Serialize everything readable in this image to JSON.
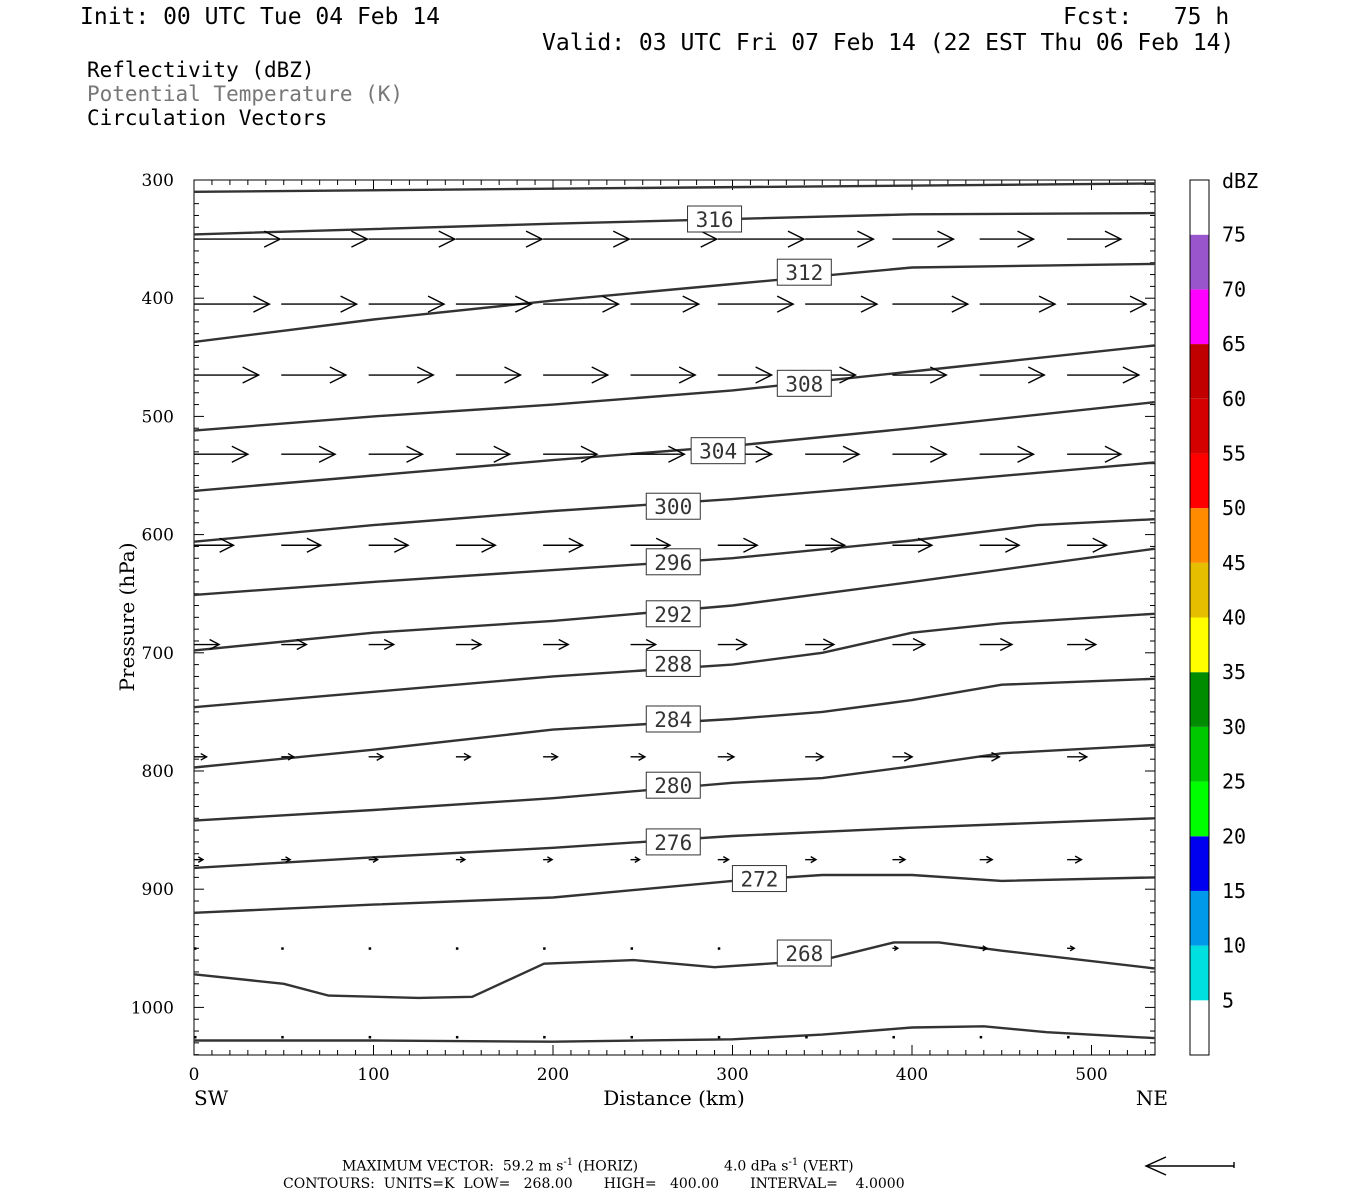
{
  "header": {
    "init": "Init: 00 UTC Tue 04 Feb 14",
    "fcst": "Fcst:   75 h",
    "valid": "Valid: 03 UTC Fri 07 Feb 14 (22 EST Thu 06 Feb 14)"
  },
  "legend": {
    "fields": [
      "Reflectivity (dBZ)",
      "Potential Temperature (K)",
      "Circulation Vectors"
    ],
    "colors": [
      "#000000",
      "#777777",
      "#000000"
    ]
  },
  "footer": {
    "max_vector": "MAXIMUM VECTOR:  59.2 m s",
    "max_vector_exp": "-1",
    "horiz": "(HORIZ)",
    "vert_val": "4.0 dPa s",
    "vert_exp": "-1",
    "vert": "(VERT)",
    "contours": "CONTOURS:  UNITS=K  LOW=   268.00       HIGH=   400.00       INTERVAL=    4.0000"
  },
  "chart_data": {
    "type": "cross-section",
    "xlabel": "Distance (km)",
    "ylabel": "Pressure (hPa)",
    "xlim": [
      0,
      535
    ],
    "ylim": [
      1040,
      300
    ],
    "x_ticks": [
      0,
      100,
      200,
      300,
      400,
      500
    ],
    "y_ticks": [
      300,
      400,
      500,
      600,
      700,
      800,
      900,
      1000
    ],
    "left_endpoint": "SW",
    "right_endpoint": "NE",
    "contours": [
      {
        "level": "unlabeled",
        "x": [
          0,
          535
        ],
        "p": [
          310,
          303
        ]
      },
      {
        "level": "316",
        "x": [
          0,
          200,
          400,
          535
        ],
        "p": [
          346,
          337,
          329,
          328
        ],
        "label_at": [
          290,
          333
        ]
      },
      {
        "level": "312",
        "x": [
          0,
          100,
          200,
          300,
          400,
          535
        ],
        "p": [
          437,
          418,
          402,
          388,
          374,
          371
        ],
        "label_at": [
          340,
          378
        ]
      },
      {
        "level": "308",
        "x": [
          0,
          100,
          200,
          300,
          400,
          535
        ],
        "p": [
          512,
          500,
          490,
          478,
          462,
          440
        ],
        "label_at": [
          340,
          472
        ]
      },
      {
        "level": "304",
        "x": [
          0,
          100,
          200,
          300,
          400,
          535
        ],
        "p": [
          563,
          550,
          537,
          525,
          510,
          488
        ],
        "label_at": [
          292,
          529
        ]
      },
      {
        "level": "300",
        "x": [
          0,
          100,
          200,
          300,
          400,
          535
        ],
        "p": [
          606,
          592,
          580,
          570,
          557,
          539
        ],
        "label_at": [
          267,
          576
        ]
      },
      {
        "level": "296",
        "x": [
          0,
          100,
          200,
          300,
          400,
          470,
          535
        ],
        "p": [
          651,
          640,
          630,
          620,
          605,
          592,
          587
        ],
        "label_at": [
          267,
          623
        ]
      },
      {
        "level": "292",
        "x": [
          0,
          100,
          200,
          300,
          400,
          535
        ],
        "p": [
          698,
          683,
          673,
          660,
          640,
          612
        ],
        "label_at": [
          267,
          667
        ]
      },
      {
        "level": "288",
        "x": [
          0,
          100,
          200,
          300,
          350,
          400,
          450,
          535
        ],
        "p": [
          746,
          733,
          720,
          710,
          700,
          683,
          675,
          667
        ],
        "label_at": [
          267,
          709
        ]
      },
      {
        "level": "284",
        "x": [
          0,
          100,
          200,
          300,
          350,
          400,
          450,
          535
        ],
        "p": [
          797,
          782,
          765,
          756,
          750,
          740,
          727,
          722
        ],
        "label_at": [
          267,
          756
        ]
      },
      {
        "level": "280",
        "x": [
          0,
          100,
          200,
          300,
          350,
          400,
          450,
          535
        ],
        "p": [
          842,
          833,
          823,
          810,
          806,
          796,
          785,
          778
        ],
        "label_at": [
          267,
          812
        ]
      },
      {
        "level": "276",
        "x": [
          0,
          100,
          200,
          300,
          400,
          535
        ],
        "p": [
          882,
          873,
          865,
          855,
          848,
          840
        ],
        "label_at": [
          267,
          860
        ]
      },
      {
        "level": "272",
        "x": [
          0,
          100,
          200,
          300,
          350,
          400,
          450,
          535
        ],
        "p": [
          920,
          913,
          907,
          893,
          888,
          888,
          893,
          890
        ],
        "label_at": [
          315,
          891
        ]
      },
      {
        "level": "268",
        "x": [
          0,
          50,
          75,
          125,
          155,
          195,
          245,
          290,
          350,
          390,
          415,
          450,
          535
        ],
        "p": [
          972,
          980,
          990,
          992,
          991,
          963,
          960,
          966,
          960,
          945,
          945,
          952,
          967
        ],
        "label_at": [
          340,
          954
        ]
      },
      {
        "level": "unlabeled",
        "x": [
          0,
          100,
          200,
          300,
          350,
          400,
          440,
          475,
          535
        ],
        "p": [
          1028,
          1028,
          1029,
          1027,
          1023,
          1017,
          1016,
          1021,
          1026
        ]
      }
    ],
    "vector_rows_hPa": [
      350,
      405,
      465,
      532,
      609,
      693,
      788,
      875,
      950,
      1025
    ],
    "vector_columns_km": [
      0,
      48.6,
      97.3,
      145.9,
      194.5,
      243.2,
      291.8,
      340.5,
      389.1,
      437.7,
      486.4
    ],
    "vector_lengths_km": [
      [
        48,
        48,
        48,
        48,
        48,
        48,
        48,
        38,
        34,
        30,
        30
      ],
      [
        42,
        42,
        42,
        42,
        42,
        38,
        42,
        40,
        42,
        42,
        44
      ],
      [
        36,
        36,
        36,
        36,
        36,
        36,
        30,
        28,
        30,
        36,
        40
      ],
      [
        30,
        30,
        30,
        30,
        30,
        30,
        30,
        30,
        30,
        30,
        30
      ],
      [
        22,
        22,
        22,
        22,
        22,
        22,
        22,
        22,
        22,
        22,
        22
      ],
      [
        14,
        14,
        14,
        14,
        14,
        14,
        16,
        16,
        18,
        18,
        16
      ],
      [
        7,
        7,
        8,
        8,
        8,
        8,
        9,
        10,
        11,
        11,
        11
      ],
      [
        5,
        5,
        5,
        5,
        5,
        5,
        6,
        6,
        7,
        7,
        8
      ],
      [
        0,
        1,
        1,
        1,
        1,
        1,
        1,
        2,
        3,
        4,
        4
      ],
      [
        0,
        1,
        1,
        1,
        1,
        1,
        1,
        1,
        1,
        1,
        1
      ]
    ],
    "reference_vector": "left-pointing, bottom-right"
  },
  "colorbar": {
    "title": "dBZ",
    "labels": [
      "5",
      "10",
      "15",
      "20",
      "25",
      "30",
      "35",
      "40",
      "45",
      "50",
      "55",
      "60",
      "65",
      "70",
      "75"
    ],
    "colors": [
      "#ffffff",
      "#00e0e0",
      "#0098e8",
      "#0000f0",
      "#00ff00",
      "#00c800",
      "#008c00",
      "#ffff00",
      "#e6be00",
      "#ff8c00",
      "#ff0000",
      "#d40000",
      "#c00000",
      "#ff00ff",
      "#9955cc",
      "#ffffff"
    ]
  }
}
